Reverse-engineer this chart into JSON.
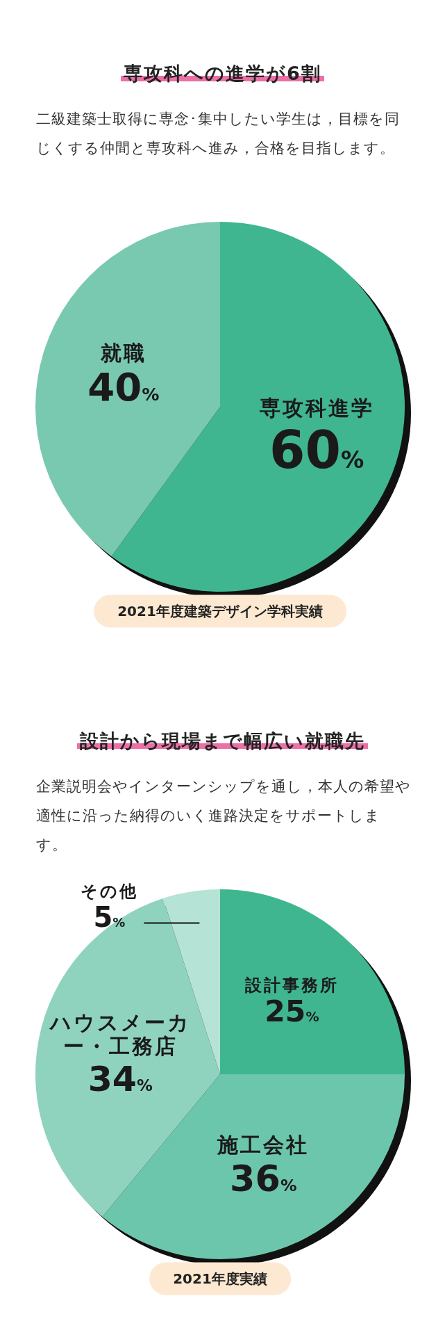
{
  "chart_data": [
    {
      "type": "pie",
      "title": "専攻科への進学が6割",
      "subtitle": "二級建築士取得に専念･集中したい学生は，目標を同じくする仲間と専攻科へ進み，合格を目指します。",
      "categories": [
        "専攻科進学",
        "就職"
      ],
      "values": [
        60,
        40
      ],
      "value_labels": [
        "60%",
        "40%"
      ],
      "colors": [
        "#3fb690",
        "#79c9b0"
      ],
      "annotations": [
        "2021年度建築デザイン学科実績"
      ]
    },
    {
      "type": "pie",
      "title": "設計から現場まで幅広い就職先",
      "subtitle": "企業説明会やインターンシップを通し，本人の希望や適性に沿った納得のいく進路決定をサポートします。",
      "categories": [
        "設計事務所",
        "施工会社",
        "ハウスメーカー・工務店",
        "その他"
      ],
      "values": [
        25,
        36,
        34,
        5
      ],
      "value_labels": [
        "25%",
        "36%",
        "34%",
        "5%"
      ],
      "colors": [
        "#3fb690",
        "#6cc6ac",
        "#8fd3bf",
        "#b5e3d5"
      ],
      "annotations": [
        "2021年度実績"
      ]
    }
  ]
}
